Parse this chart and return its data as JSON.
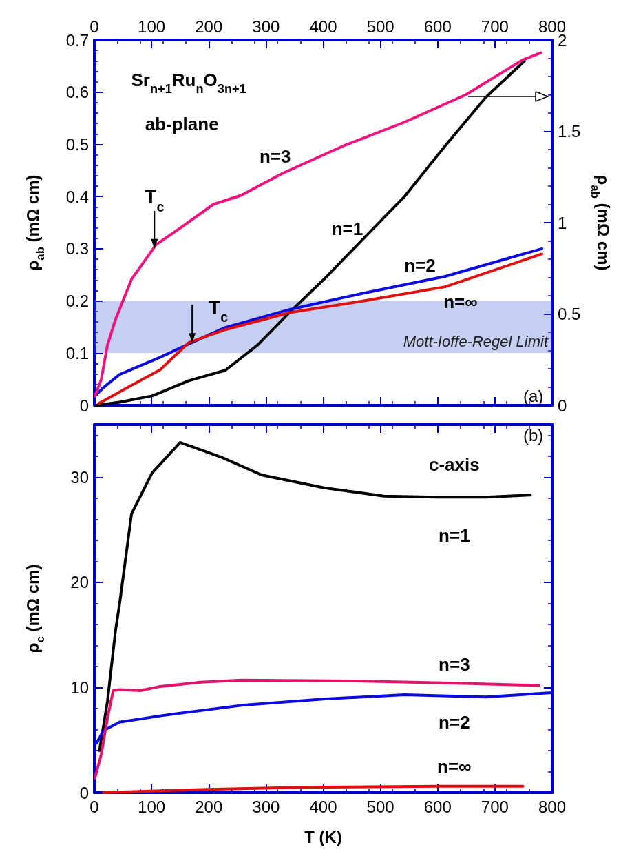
{
  "chart_data": [
    {
      "type": "line",
      "ylabel": "ρ$_{ab}$ (mΩ cm)",
      "y2label": "ρ$_{ab}$ (mΩ cm)",
      "annotations": [
        "Sr$_{n+1}$Ru$_{n}$O$_{3n+1}$",
        "ab-plane",
        "(a)",
        {
          "text": "T$_{c}$",
          "x": 105,
          "y": 0.3
        },
        {
          "text": "T$_{c}$",
          "x": 171,
          "y": 0.12
        }
      ],
      "xlim": [
        0,
        800
      ],
      "xticks": [
        0,
        100,
        200,
        300,
        400,
        500,
        600,
        700,
        800
      ],
      "ylim": [
        0,
        0.7
      ],
      "yticks": [
        0,
        0.1,
        0.2,
        0.3,
        0.4,
        0.5,
        0.6,
        0.7
      ],
      "y2lim": [
        0,
        2
      ],
      "y2ticks": [
        0,
        0.5,
        1,
        1.5,
        2
      ],
      "bands": [
        {
          "axis": "y",
          "from": 0.1,
          "to": 0.2,
          "label": "Mott-Ioffe-Regel Limit",
          "color": "#3a5fd0"
        }
      ],
      "series": [
        {
          "name": "n=1",
          "color": "#000000",
          "x": [
            4,
            44,
            101,
            165,
            229,
            286,
            343,
            400,
            471,
            542,
            613,
            684,
            752
          ],
          "values": [
            0,
            0.006,
            0.018,
            0.047,
            0.067,
            0.116,
            0.18,
            0.24,
            0.32,
            0.4,
            0.497,
            0.59,
            0.66
          ]
        },
        {
          "name": "n=2",
          "color": "#0a0ae0",
          "x": [
            1,
            16,
            44,
            115,
            172,
            229,
            343,
            471,
            613,
            782
          ],
          "values": [
            0.018,
            0.034,
            0.059,
            0.092,
            0.121,
            0.149,
            0.184,
            0.215,
            0.247,
            0.3
          ]
        },
        {
          "name": "n=3",
          "color": "#f0127f",
          "axis": "y2",
          "x": [
            1,
            12,
            23,
            37,
            65,
            108,
            150,
            208,
            257,
            329,
            435,
            542,
            649,
            748,
            780
          ],
          "values": [
            0.05,
            0.14,
            0.33,
            0.47,
            0.69,
            0.88,
            0.97,
            1.1,
            1.15,
            1.27,
            1.42,
            1.55,
            1.7,
            1.89,
            1.93
          ]
        },
        {
          "name": "n=∞",
          "color": "#e01010",
          "x": [
            7,
            58,
            115,
            165,
            229,
            343,
            471,
            613,
            782
          ],
          "values": [
            0.003,
            0.034,
            0.068,
            0.12,
            0.145,
            0.178,
            0.2,
            0.227,
            0.29
          ]
        }
      ]
    },
    {
      "type": "line",
      "xlabel": "T (K)",
      "ylabel": "ρ$_{c}$ (mΩ cm)",
      "annotations": [
        "(b)",
        "c-axis"
      ],
      "xlim": [
        0,
        800
      ],
      "xticks": [
        0,
        100,
        200,
        300,
        400,
        500,
        600,
        700,
        800
      ],
      "ylim": [
        0,
        35
      ],
      "yticks": [
        0,
        10,
        20,
        30
      ],
      "series": [
        {
          "name": "n=1",
          "color": "#000000",
          "x": [
            9,
            23,
            37,
            44,
            65,
            101,
            150,
            222,
            293,
            400,
            506,
            599,
            684,
            762
          ],
          "values": [
            4,
            8.7,
            15.4,
            17.9,
            26.5,
            30.4,
            33.3,
            31.9,
            30.2,
            29,
            28.2,
            28.1,
            28.1,
            28.3
          ]
        },
        {
          "name": "n=2",
          "color": "#0a0ae0",
          "x": [
            4,
            16,
            44,
            115,
            257,
            400,
            542,
            684,
            800
          ],
          "values": [
            4.7,
            5.9,
            6.7,
            7.3,
            8.3,
            8.9,
            9.3,
            9.1,
            9.5
          ]
        },
        {
          "name": "n=3",
          "color": "#e0156a",
          "x": [
            1,
            12,
            23,
            33,
            44,
            80,
            115,
            186,
            257,
            471,
            634,
            777
          ],
          "values": [
            1.4,
            3.6,
            7.1,
            9.7,
            9.8,
            9.7,
            10.1,
            10.5,
            10.7,
            10.6,
            10.4,
            10.2
          ]
        },
        {
          "name": "n=∞",
          "color": "#e01010",
          "x": [
            16,
            186,
            364,
            599,
            749
          ],
          "values": [
            0,
            0.3,
            0.5,
            0.6,
            0.6
          ]
        }
      ]
    }
  ]
}
